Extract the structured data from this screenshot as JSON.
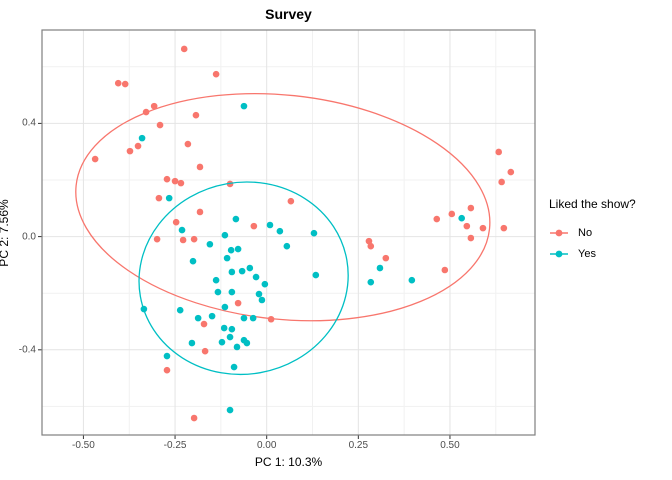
{
  "title": "Survey",
  "legend": {
    "title": "Liked the show?",
    "entries": [
      {
        "label": "No",
        "color": "#F8766D"
      },
      {
        "label": "Yes",
        "color": "#00BFC4"
      }
    ]
  },
  "chart_data": {
    "type": "scatter",
    "title": "Survey",
    "xlabel": "PC 1: 10.3%",
    "ylabel": "PC 2: 7.56%",
    "legend_title": "Liked the show?",
    "legend_position": "right",
    "grid": true,
    "xlim": [
      -0.613,
      0.732
    ],
    "ylim": [
      -0.701,
      0.73
    ],
    "x_major_ticks": [
      -0.5,
      -0.25,
      0.0,
      0.25,
      0.5
    ],
    "x_tick_labels": [
      "-0.50",
      "-0.25",
      "0.00",
      "0.25",
      "0.50"
    ],
    "x_minor_ticks": [
      -0.375,
      -0.125,
      0.125,
      0.375,
      0.625
    ],
    "y_major_ticks": [
      -0.4,
      0.0,
      0.4
    ],
    "y_tick_labels": [
      "-0.4",
      "0.0",
      "0.4"
    ],
    "y_minor_ticks": [
      -0.6,
      -0.2,
      0.2,
      0.6
    ],
    "point_radius_px": 3.3,
    "colors": {
      "major_grid": "#e4e4e4",
      "minor_grid": "#f1f1f1",
      "panel_border": "#7f7f7f",
      "tick_mark": "#333333"
    },
    "series": [
      {
        "name": "No",
        "color": "#F8766D",
        "ellipse": {
          "cx": 0.044,
          "cy": 0.104,
          "rx": 0.567,
          "ry": 0.396,
          "angle_deg": 6
        },
        "points": [
          [
            -0.225,
            0.663
          ],
          [
            -0.138,
            0.574
          ],
          [
            -0.405,
            0.542
          ],
          [
            -0.386,
            0.539
          ],
          [
            -0.329,
            0.44
          ],
          [
            -0.307,
            0.461
          ],
          [
            -0.291,
            0.394
          ],
          [
            -0.193,
            0.429
          ],
          [
            -0.468,
            0.274
          ],
          [
            -0.373,
            0.302
          ],
          [
            -0.351,
            0.32
          ],
          [
            -0.215,
            0.327
          ],
          [
            -0.182,
            0.246
          ],
          [
            -0.272,
            0.203
          ],
          [
            -0.25,
            0.196
          ],
          [
            -0.234,
            0.189
          ],
          [
            -0.294,
            0.136
          ],
          [
            -0.1,
            0.186
          ],
          [
            0.066,
            0.125
          ],
          [
            -0.182,
            0.087
          ],
          [
            -0.247,
            0.051
          ],
          [
            -0.299,
            -0.009
          ],
          [
            -0.228,
            -0.012
          ],
          [
            -0.198,
            -0.009
          ],
          [
            -0.035,
            0.037
          ],
          [
            -0.078,
            -0.235
          ],
          [
            -0.171,
            -0.309
          ],
          [
            0.012,
            -0.292
          ],
          [
            -0.168,
            -0.405
          ],
          [
            -0.272,
            -0.472
          ],
          [
            -0.198,
            -0.641
          ],
          [
            0.279,
            -0.016
          ],
          [
            0.284,
            -0.034
          ],
          [
            0.325,
            -0.076
          ],
          [
            0.486,
            -0.118
          ],
          [
            0.464,
            0.062
          ],
          [
            0.505,
            0.08
          ],
          [
            0.557,
            0.101
          ],
          [
            0.546,
            0.037
          ],
          [
            0.59,
            0.03
          ],
          [
            0.647,
            0.03
          ],
          [
            0.557,
            -0.005
          ],
          [
            0.633,
            0.299
          ],
          [
            0.666,
            0.228
          ],
          [
            0.641,
            0.193
          ]
        ]
      },
      {
        "name": "Yes",
        "color": "#00BFC4",
        "ellipse": {
          "cx": -0.063,
          "cy": -0.147,
          "rx": 0.286,
          "ry": 0.339,
          "angle_deg": -10
        },
        "points": [
          [
            -0.062,
            0.461
          ],
          [
            -0.34,
            0.348
          ],
          [
            -0.266,
            0.136
          ],
          [
            -0.231,
            0.023
          ],
          [
            -0.155,
            -0.027
          ],
          [
            -0.114,
            0.005
          ],
          [
            -0.097,
            -0.048
          ],
          [
            -0.078,
            -0.044
          ],
          [
            -0.108,
            -0.076
          ],
          [
            -0.084,
            0.062
          ],
          [
            0.009,
            0.041
          ],
          [
            0.036,
            0.019
          ],
          [
            0.129,
            0.012
          ],
          [
            0.055,
            -0.034
          ],
          [
            -0.201,
            -0.087
          ],
          [
            -0.095,
            -0.125
          ],
          [
            -0.067,
            -0.122
          ],
          [
            -0.046,
            -0.111
          ],
          [
            -0.029,
            -0.143
          ],
          [
            -0.005,
            -0.168
          ],
          [
            -0.138,
            -0.154
          ],
          [
            -0.133,
            -0.196
          ],
          [
            -0.095,
            -0.196
          ],
          [
            -0.021,
            -0.203
          ],
          [
            -0.013,
            -0.224
          ],
          [
            -0.114,
            -0.249
          ],
          [
            -0.335,
            -0.256
          ],
          [
            -0.236,
            -0.26
          ],
          [
            -0.187,
            -0.288
          ],
          [
            -0.149,
            -0.281
          ],
          [
            -0.037,
            -0.288
          ],
          [
            -0.062,
            -0.288
          ],
          [
            -0.116,
            -0.323
          ],
          [
            -0.095,
            -0.327
          ],
          [
            -0.1,
            -0.355
          ],
          [
            -0.122,
            -0.373
          ],
          [
            -0.062,
            -0.366
          ],
          [
            -0.081,
            -0.39
          ],
          [
            -0.054,
            -0.376
          ],
          [
            -0.204,
            -0.376
          ],
          [
            -0.272,
            -0.422
          ],
          [
            -0.089,
            -0.461
          ],
          [
            -0.1,
            -0.613
          ],
          [
            0.309,
            -0.111
          ],
          [
            0.134,
            -0.136
          ],
          [
            0.284,
            -0.161
          ],
          [
            0.396,
            -0.154
          ],
          [
            0.532,
            0.065
          ]
        ]
      }
    ]
  }
}
